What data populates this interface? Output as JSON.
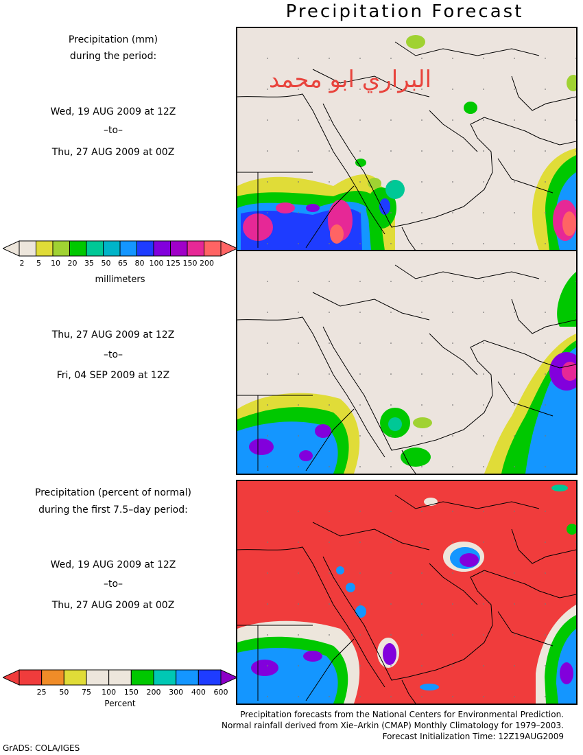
{
  "title": "Precipitation Forecast",
  "panel1": {
    "heading_line1": "Precipitation (mm)",
    "heading_line2": "during the period:",
    "start": "Wed, 19 AUG 2009 at 12Z",
    "to": "–to–",
    "end": "Thu, 27 AUG 2009 at 00Z"
  },
  "panel2": {
    "start": "Thu, 27 AUG 2009 at 12Z",
    "to": "–to–",
    "end": "Fri, 04 SEP 2009 at 12Z"
  },
  "panel3": {
    "heading_line1": "Precipitation (percent of normal)",
    "heading_line2": "during the first 7.5–day period:",
    "start": "Wed, 19 AUG 2009 at 12Z",
    "to": "–to–",
    "end": "Thu, 27 AUG 2009 at 00Z"
  },
  "mm_legend": {
    "labels": [
      "2",
      "5",
      "10",
      "20",
      "35",
      "50",
      "65",
      "80",
      "100",
      "125",
      "150",
      "200"
    ],
    "colors": [
      "#ede6dc",
      "#e0dc38",
      "#a0d232",
      "#00c800",
      "#00c896",
      "#00b4c8",
      "#1496ff",
      "#1e3cff",
      "#8200dc",
      "#a000c8",
      "#e62896",
      "#ff6464"
    ],
    "end_left": "#ede6dc",
    "end_right": "#ff6464",
    "unit": "millimeters"
  },
  "pct_legend": {
    "labels": [
      "25",
      "50",
      "75",
      "100",
      "150",
      "200",
      "300",
      "400",
      "600"
    ],
    "colors": [
      "#f03c3c",
      "#f08c28",
      "#e0dc38",
      "#ede6dc",
      "#ede6dc",
      "#00c800",
      "#00c8b4",
      "#1496ff",
      "#1e3cff"
    ],
    "end_left": "#f03c3c",
    "end_right": "#8c00c8",
    "unit": "Percent"
  },
  "watermark": "البراري ابو محمد",
  "footer": {
    "line1": "Precipitation forecasts from the National Centers for Environmental Prediction.",
    "line2": "Normal rainfall derived from Xie–Arkin (CMAP) Monthly Climatology for 1979–2003.",
    "line3": "Forecast Initialization Time: 12Z19AUG2009"
  },
  "credit": "GrADS: COLA/IGES",
  "colors": {
    "land": "#ece4de",
    "anomaly_red": "#f03c3c"
  }
}
